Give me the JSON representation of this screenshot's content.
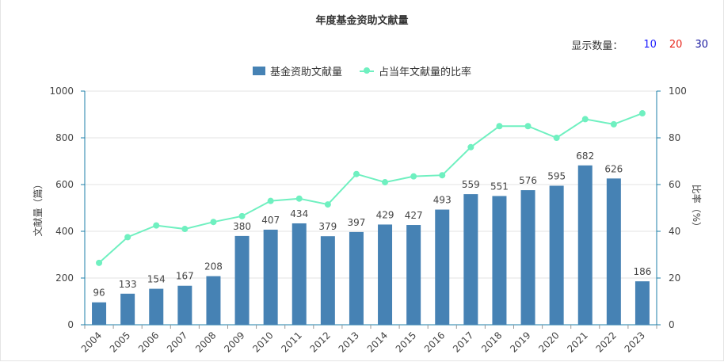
{
  "header": {
    "title": "年度基金资助文献量"
  },
  "count_control": {
    "label": "显示数量：",
    "options": [
      {
        "label": "10",
        "color": "#1a1aff"
      },
      {
        "label": "20",
        "color": "#e8281e"
      },
      {
        "label": "30",
        "color": "#1a1aa0"
      }
    ]
  },
  "legend": {
    "bar_label": "基金资助文献量",
    "line_label": "占当年文献量的比率"
  },
  "colors": {
    "bar": "#4682b4",
    "line": "#6ff0c0",
    "axis": "#1e7fa8",
    "grid": "#e3e3e3"
  },
  "chart_data": {
    "type": "bar",
    "title": "年度基金资助文献量",
    "categories": [
      "2004",
      "2005",
      "2006",
      "2007",
      "2008",
      "2009",
      "2010",
      "2011",
      "2012",
      "2013",
      "2014",
      "2015",
      "2016",
      "2017",
      "2018",
      "2019",
      "2020",
      "2021",
      "2022",
      "2023"
    ],
    "series": [
      {
        "name": "基金资助文献量",
        "type": "bar",
        "axis": "left",
        "values": [
          96,
          133,
          154,
          167,
          208,
          380,
          407,
          434,
          379,
          397,
          429,
          427,
          493,
          559,
          551,
          576,
          595,
          682,
          626,
          186
        ]
      },
      {
        "name": "占当年文献量的比率",
        "type": "line",
        "axis": "right",
        "values": [
          26.5,
          37.5,
          42.5,
          41,
          44,
          46.5,
          53,
          54,
          51.5,
          64.5,
          61,
          63.5,
          64,
          76,
          85,
          85,
          80,
          88,
          85.8,
          90.5
        ]
      }
    ],
    "ylabel_left": "文献量（篇）",
    "ylabel_right": "比率（%）",
    "ylim_left": [
      0,
      1000
    ],
    "yticks_left": [
      0,
      200,
      400,
      600,
      800,
      1000
    ],
    "ylim_right": [
      0,
      100
    ],
    "yticks_right": [
      0,
      20,
      40,
      60,
      80,
      100
    ],
    "grid": true,
    "legend_position": "top-center"
  }
}
